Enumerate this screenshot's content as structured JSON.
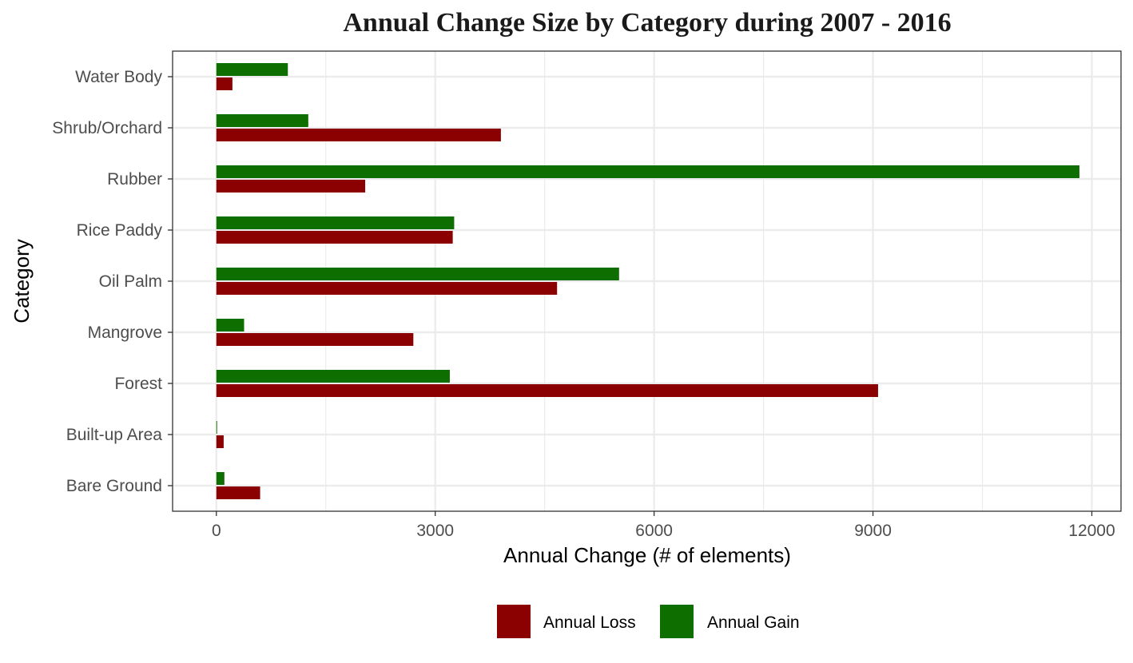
{
  "chart_data": {
    "type": "bar",
    "orientation": "horizontal",
    "title": "Annual Change Size by Category during  2007 - 2016",
    "xlabel": "Annual Change (# of elements)",
    "ylabel": "Category",
    "categories": [
      "Bare Ground",
      "Built-up Area",
      "Forest",
      "Mangrove",
      "Oil Palm",
      "Rice Paddy",
      "Rubber",
      "Shrub/Orchard",
      "Water Body"
    ],
    "series": [
      {
        "name": "Annual Loss",
        "color": "#8B0000",
        "values": [
          600,
          100,
          9070,
          2700,
          4670,
          3240,
          2040,
          3900,
          220
        ]
      },
      {
        "name": "Annual Gain",
        "color": "#0F6E00",
        "values": [
          110,
          10,
          3200,
          380,
          5520,
          3260,
          11830,
          1260,
          980
        ]
      }
    ],
    "xlim": [
      -600,
      12400
    ],
    "xticks": [
      0,
      3000,
      6000,
      9000,
      12000
    ],
    "grid": true,
    "legend_position": "bottom"
  }
}
